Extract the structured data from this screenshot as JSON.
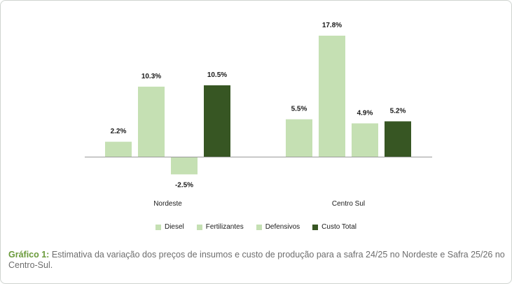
{
  "chart_data": {
    "type": "bar",
    "categories": [
      "Nordeste",
      "Centro Sul"
    ],
    "series": [
      {
        "name": "Diesel",
        "values": [
          2.2,
          5.5
        ],
        "labels": [
          "2.2%",
          "5.5%"
        ],
        "color": "#c5e0b3"
      },
      {
        "name": "Fertilizantes",
        "values": [
          10.3,
          17.8
        ],
        "labels": [
          "10.3%",
          "17.8%"
        ],
        "color": "#c5e0b3"
      },
      {
        "name": "Defensivos",
        "values": [
          -2.5,
          4.9
        ],
        "labels": [
          "-2.5%",
          "4.9%"
        ],
        "color": "#c5e0b3"
      },
      {
        "name": "Custo Total",
        "values": [
          10.5,
          5.2
        ],
        "labels": [
          "10.5%",
          "5.2%"
        ],
        "color": "#375623"
      }
    ],
    "ylim": [
      -2.5,
      17.8
    ],
    "grid": false,
    "legend_position": "bottom"
  },
  "caption": {
    "label": "Gráfico 1:",
    "text": " Estimativa da variação dos preços de insumos e custo de produção para a safra 24/25 no Nordeste e Safra 25/26 no Centro-Sul."
  }
}
